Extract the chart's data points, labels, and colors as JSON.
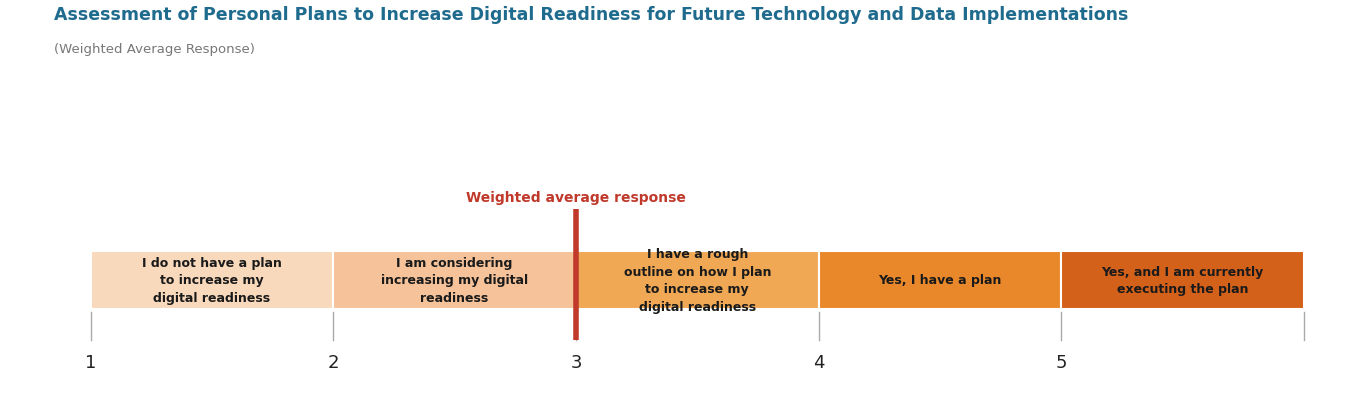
{
  "title": "Assessment of Personal Plans to Increase Digital Readiness for Future Technology and Data Implementations",
  "subtitle": "(Weighted Average Response)",
  "title_color": "#1F6B8E",
  "subtitle_color": "#777777",
  "title_fontsize": 12.5,
  "subtitle_fontsize": 9.5,
  "weighted_avg_label": "Weighted average response",
  "weighted_avg_x": 2.0,
  "weighted_avg_color": "#C0392B",
  "segments": [
    {
      "label": "I do not have a plan\nto increase my\ndigital readiness",
      "color": "#F9D9BB",
      "x_start": 0,
      "x_end": 1
    },
    {
      "label": "I am considering\nincreasing my digital\nreadiness",
      "color": "#F5C29A",
      "x_start": 1,
      "x_end": 2
    },
    {
      "label": "I have a rough\noutline on how I plan\nto increase my\ndigital readiness",
      "color": "#F0A855",
      "x_start": 2,
      "x_end": 3
    },
    {
      "label": "Yes, I have a plan",
      "color": "#E8882A",
      "x_start": 3,
      "x_end": 4
    },
    {
      "label": "Yes, and I am currently\nexecuting the plan",
      "color": "#D4611A",
      "x_start": 4,
      "x_end": 5
    }
  ],
  "tick_positions": [
    0,
    1,
    2,
    3,
    4
  ],
  "tick_labels": [
    "1",
    "2",
    "3",
    "4",
    "5"
  ],
  "bar_y": 0.0,
  "bar_height": 1.0,
  "segment_text_fontsize": 9,
  "tick_fontsize": 13,
  "background_color": "#FFFFFF",
  "xlim": [
    -0.15,
    5.15
  ],
  "ylim": [
    -1.5,
    3.5
  ]
}
